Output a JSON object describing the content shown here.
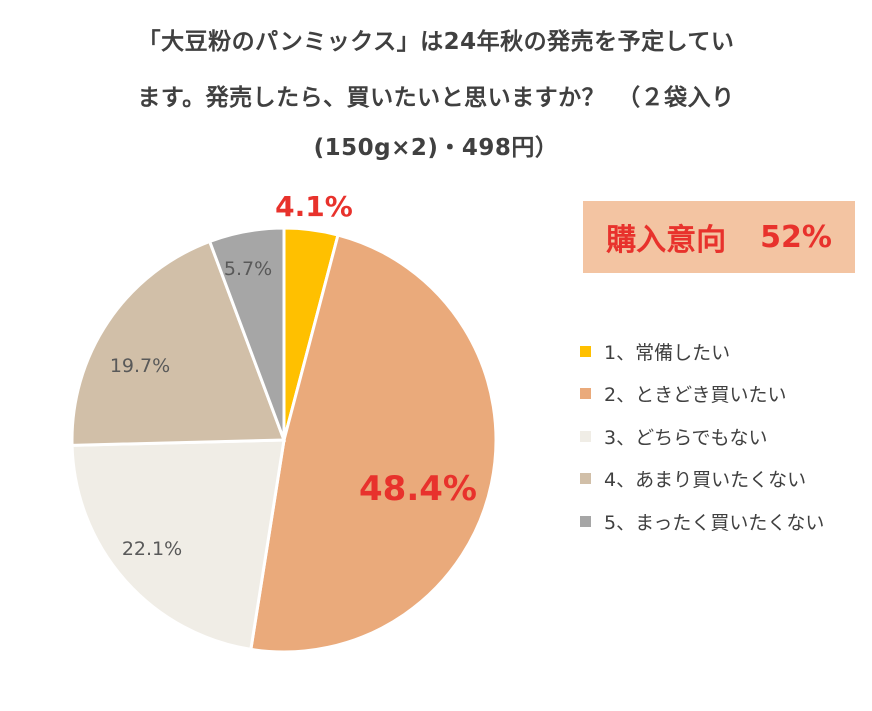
{
  "title": {
    "line1": "「大豆粉のパンミックス」は24年秋の発売を予定してい",
    "line2": "ます。発売したら、買いたいと思いますか？　（２袋入り",
    "line3": "(150g×2)・498円）"
  },
  "badge": {
    "label": "購入意向",
    "value": "52%"
  },
  "colors": {
    "highlight": "#e8322c",
    "label_dark": "#595959",
    "slice_border": "#ffffff"
  },
  "chart_data": {
    "type": "pie",
    "title": "「大豆粉のパンミックス」は24年秋の発売を予定しています。発売したら、買いたいと思いますか？　（２袋入り(150g×2)・498円）",
    "start_angle_deg": 0,
    "direction": "clockwise",
    "slices": [
      {
        "legend": "1、常備したい",
        "value": 4.1,
        "label": "4.1%",
        "color": "#ffc000",
        "label_style": "highlight"
      },
      {
        "legend": "2、ときどき買いたい",
        "value": 48.4,
        "label": "48.4%",
        "color": "#eaaa7b",
        "label_style": "highlight-large"
      },
      {
        "legend": "3、どちらでもない",
        "value": 22.1,
        "label": "22.1%",
        "color": "#f0ede6",
        "label_style": "normal"
      },
      {
        "legend": "4、あまり買いたくない",
        "value": 19.7,
        "label": "19.7%",
        "color": "#d1bfa8",
        "label_style": "normal"
      },
      {
        "legend": "5、まったく買いたくない",
        "value": 5.7,
        "label": "5.7%",
        "color": "#a6a6a6",
        "label_style": "normal"
      }
    ],
    "legend_position": "right"
  }
}
